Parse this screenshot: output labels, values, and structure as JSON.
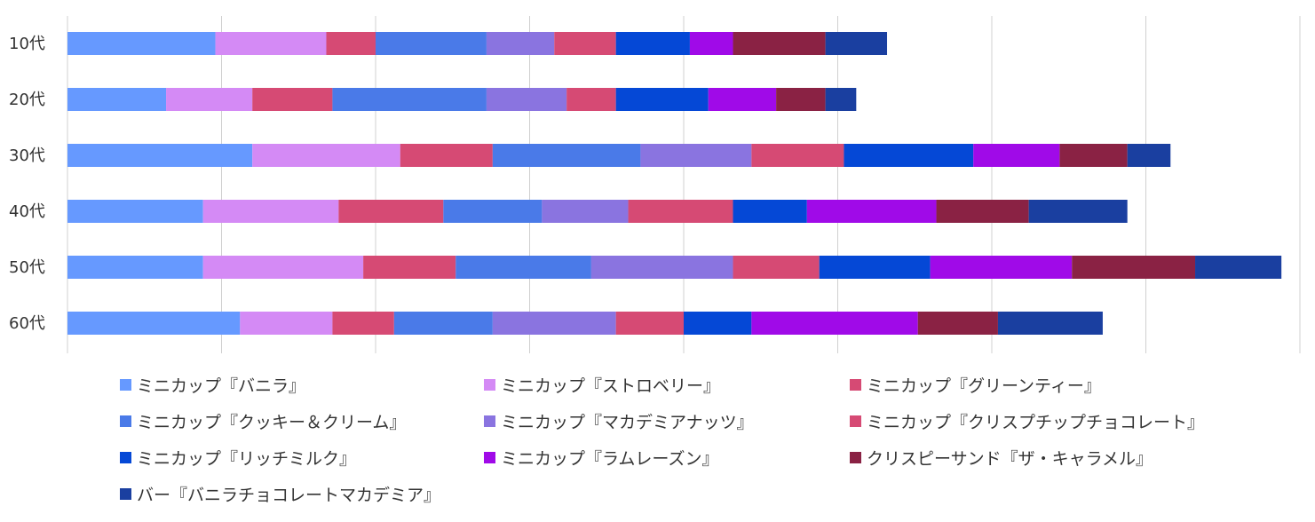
{
  "chart_data": {
    "type": "bar",
    "orientation": "horizontal",
    "stacked": true,
    "title": "",
    "xlabel": "",
    "ylabel": "",
    "xlim": [
      0,
      20
    ],
    "grid": true,
    "legend_position": "bottom",
    "categories": [
      "10代",
      "20代",
      "30代",
      "40代",
      "50代",
      "60代"
    ],
    "series": [
      {
        "name": "ミニカップ『バニラ』",
        "color": "#6699ff",
        "values": [
          2.4,
          1.6,
          3.0,
          2.2,
          2.2,
          2.8
        ]
      },
      {
        "name": "ミニカップ『ストロベリー』",
        "color": "#d48af5",
        "values": [
          1.8,
          1.4,
          2.4,
          2.2,
          2.6,
          1.5
        ]
      },
      {
        "name": "ミニカップ『グリーンティー』",
        "color": "#d64a74",
        "values": [
          0.8,
          1.3,
          1.5,
          1.7,
          1.5,
          1.0
        ]
      },
      {
        "name": "ミニカップ『クッキー＆クリーム』",
        "color": "#4a7ae8",
        "values": [
          1.8,
          2.5,
          2.4,
          1.6,
          2.2,
          1.6
        ]
      },
      {
        "name": "ミニカップ『マカデミアナッツ』",
        "color": "#8a74e0",
        "values": [
          1.1,
          1.3,
          1.8,
          1.4,
          2.3,
          2.0
        ]
      },
      {
        "name": "ミニカップ『クリスプチップチョコレート』",
        "color": "#d64a74",
        "values": [
          1.0,
          0.8,
          1.5,
          1.7,
          1.4,
          1.1
        ]
      },
      {
        "name": "ミニカップ『リッチミルク』",
        "color": "#0548d6",
        "values": [
          1.2,
          1.5,
          2.1,
          1.2,
          1.8,
          1.1
        ]
      },
      {
        "name": "ミニカップ『ラムレーズン』",
        "color": "#a00ae8",
        "values": [
          0.7,
          1.1,
          1.4,
          2.1,
          2.3,
          2.7
        ]
      },
      {
        "name": "クリスピーサンド『ザ・キャラメル』",
        "color": "#8a2244",
        "values": [
          1.5,
          0.8,
          1.1,
          1.5,
          2.0,
          1.3
        ]
      },
      {
        "name": "バー『バニラチョコレートマカデミア』",
        "color": "#1a3fa0",
        "values": [
          1.0,
          0.5,
          0.7,
          1.6,
          1.4,
          1.7
        ]
      }
    ]
  }
}
